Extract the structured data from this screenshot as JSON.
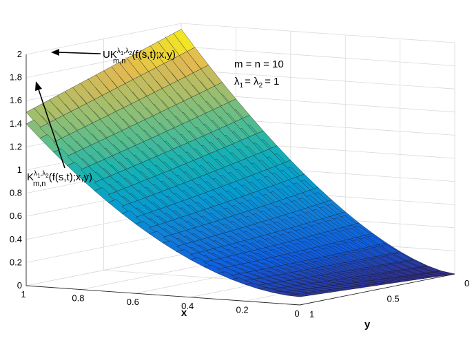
{
  "chart_data": {
    "type": "surface",
    "title": "",
    "xlabel": "x",
    "ylabel": "y",
    "zlabel": "",
    "xlim": [
      0,
      1
    ],
    "ylim": [
      0,
      1
    ],
    "zlim": [
      0,
      2
    ],
    "x_ticks": [
      "0",
      "0.2",
      "0.4",
      "0.6",
      "0.8",
      "1"
    ],
    "y_ticks": [
      "0",
      "0.5",
      "1"
    ],
    "z_ticks": [
      "0",
      "0.2",
      "0.4",
      "0.6",
      "0.8",
      "1",
      "1.2",
      "1.4",
      "1.6",
      "1.8",
      "2"
    ],
    "grid": true,
    "colormap": "parula",
    "surfaces": [
      {
        "name": "UK",
        "corners": {
          "x1_y0": 1.95,
          "x1_y1": 1.5,
          "x0_y0": 0.0,
          "x0_y1": 0.1
        }
      },
      {
        "name": "K",
        "corners": {
          "x1_y0": 1.82,
          "x1_y1": 1.4,
          "x0_y0": 0.0,
          "x0_y1": 0.07
        }
      }
    ],
    "annotations": {
      "params_line1": "m = n = 10",
      "params_line2_a": "λ",
      "params_line2_a_sub": "1",
      "params_line2_b": "= λ",
      "params_line2_b_sub": "2",
      "params_line2_c": "= 1",
      "uk_label_main": "UK",
      "uk_label_sup_a": "λ",
      "uk_label_sup_a_sub": "1",
      "uk_label_sup_comma": ",",
      "uk_label_sup_b": "λ",
      "uk_label_sup_b_sub": "2",
      "uk_label_sub": "m,n",
      "uk_label_rest": "(f(s,t);x,y)",
      "k_label_main": "K",
      "k_label_sup_a": "λ",
      "k_label_sup_a_sub": "1",
      "k_label_sup_comma": ",",
      "k_label_sup_b": "λ",
      "k_label_sup_b_sub": "2",
      "k_label_sub": "m,n",
      "k_label_rest": "(f(s,t);x,y)"
    },
    "colors": {
      "low": "#352a87",
      "mid": "#1ab2a8",
      "high": "#f9fb0e",
      "grid": "#d9d9d9",
      "axis": "#262626"
    }
  }
}
